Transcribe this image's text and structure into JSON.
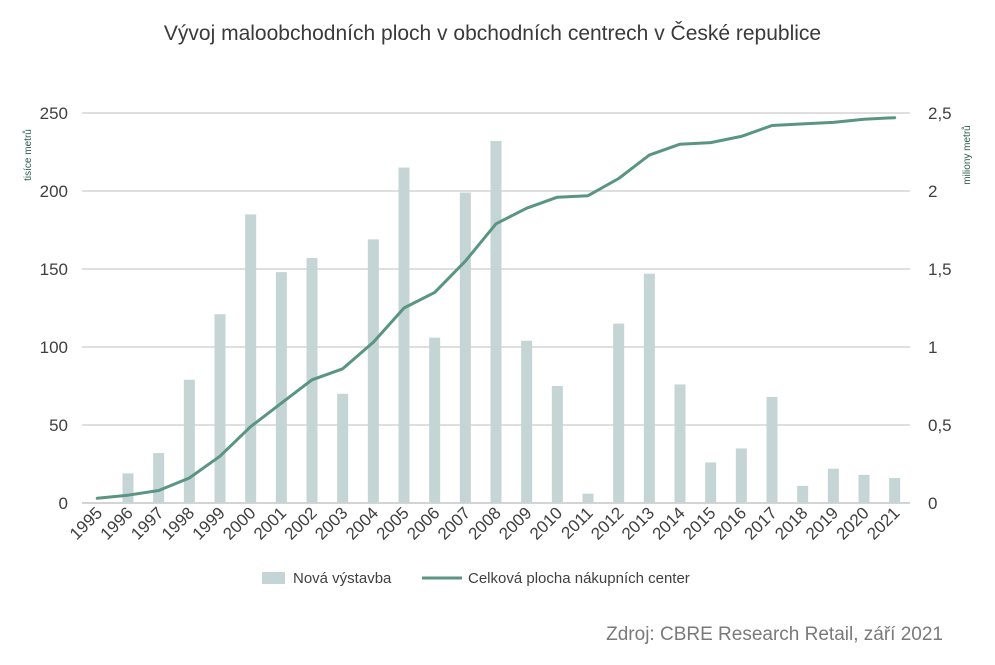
{
  "chart_data": {
    "type": "bar",
    "title": "Vývoj maloobchodních ploch v obchodních centrech v České republice",
    "categories": [
      "1995",
      "1996",
      "1997",
      "1998",
      "1999",
      "2000",
      "2001",
      "2002",
      "2003",
      "2004",
      "2005",
      "2006",
      "2007",
      "2008",
      "2009",
      "2010",
      "2011",
      "2012",
      "2013",
      "2014",
      "2015",
      "2016",
      "2017",
      "2018",
      "2019",
      "2020",
      "2021"
    ],
    "series": [
      {
        "name": "Nová výstavba",
        "type": "bar",
        "axis": "left",
        "color": "#c5d4d4",
        "values": [
          0,
          19,
          32,
          79,
          121,
          185,
          148,
          157,
          70,
          169,
          215,
          106,
          199,
          232,
          104,
          75,
          6,
          115,
          147,
          76,
          26,
          35,
          68,
          11,
          22,
          18,
          16
        ]
      },
      {
        "name": "Celková plocha nákupních center",
        "type": "line",
        "axis": "right",
        "color": "#5a9582",
        "values": [
          0.03,
          0.05,
          0.08,
          0.16,
          0.3,
          0.49,
          0.64,
          0.79,
          0.86,
          1.03,
          1.25,
          1.35,
          1.55,
          1.79,
          1.89,
          1.96,
          1.97,
          2.08,
          2.23,
          2.3,
          2.31,
          2.35,
          2.42,
          2.43,
          2.44,
          2.46,
          2.47
        ]
      }
    ],
    "y_left": {
      "label": "tisíce metrů",
      "ylim": [
        0,
        250
      ],
      "ticks": [
        "0",
        "50",
        "100",
        "150",
        "200",
        "250"
      ]
    },
    "y_right": {
      "label": "miliony metrů",
      "ylim": [
        0,
        2.5
      ],
      "ticks": [
        "0",
        "0,5",
        "1",
        "1,5",
        "2",
        "2,5"
      ]
    },
    "grid": true,
    "legend": "bottom"
  },
  "source": "Zdroj: CBRE Research Retail, září 2021"
}
